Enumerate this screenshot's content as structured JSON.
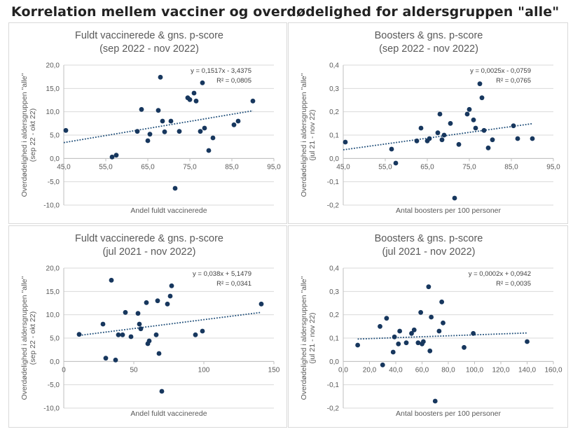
{
  "title": "Korrelation mellem vacciner og overdødelighed for aldersgruppen \"alle\"",
  "colors": {
    "point": "#17375e",
    "trend": "#1f4e79",
    "grid": "#d9d9d9",
    "axis": "#bfbfbf",
    "text": "#595959"
  },
  "chart_data": [
    {
      "type": "scatter",
      "title_lines": [
        "Fuldt vaccinerede & gns. p-score",
        "(sep 2022 - nov 2022)"
      ],
      "xlabel": "Andel fuldt vaccinerede",
      "ylabel_lines": [
        "Overdødelighed i aldersgruppen \"alle\"",
        "(sep 22 - okt 22)"
      ],
      "xlim": [
        45,
        95
      ],
      "ylim": [
        -10,
        20
      ],
      "xticks": [
        45,
        55,
        65,
        75,
        85,
        95
      ],
      "xtick_labels": [
        "45,0",
        "55,0",
        "65,0",
        "75,0",
        "85,0",
        "95,0"
      ],
      "yticks": [
        -10,
        -5,
        0,
        5,
        10,
        15,
        20
      ],
      "ytick_labels": [
        "-10,0",
        "-5,0",
        "0,0",
        "5,0",
        "10,0",
        "15,0",
        "20,0"
      ],
      "equation": "y = 0,1517x - 3,4375",
      "r_squared": "R² = 0,0805",
      "trendline": {
        "x": [
          45,
          90
        ],
        "y": [
          3.39,
          10.22
        ]
      },
      "x": [
        45.5,
        56.5,
        57.5,
        62.5,
        63.5,
        65,
        65.5,
        67.5,
        68,
        68.5,
        69,
        70.5,
        71.5,
        72.5,
        74.5,
        75,
        76,
        76.5,
        77.5,
        78,
        78.5,
        79.5,
        80.5,
        85.5,
        86.5,
        90
      ],
      "y": [
        6,
        0.3,
        0.7,
        5.8,
        10.5,
        3.8,
        5.2,
        10.3,
        17.4,
        8,
        5.7,
        8,
        -6.4,
        5.8,
        13,
        12.6,
        14,
        12.3,
        5.8,
        16.2,
        6.5,
        1.7,
        4.4,
        7.2,
        8,
        12.3
      ]
    },
    {
      "type": "scatter",
      "title_lines": [
        "Boosters & gns. p-score",
        "(sep 2022 - nov 2022)"
      ],
      "xlabel": "Antal boosters per 100 personer",
      "ylabel_lines": [
        "Overdødelighed i aldersgruppen \"alle\"",
        "(jul 21 - nov 22)"
      ],
      "xlim": [
        45,
        95
      ],
      "ylim": [
        -0.2,
        0.4
      ],
      "xticks": [
        45,
        55,
        65,
        75,
        85,
        95
      ],
      "xtick_labels": [
        "45,0",
        "55,0",
        "65,0",
        "75,0",
        "85,0",
        "95,0"
      ],
      "yticks": [
        -0.2,
        -0.1,
        0,
        0.1,
        0.2,
        0.3,
        0.4
      ],
      "ytick_labels": [
        "-0,2",
        "-0,1",
        "0,0",
        "0,1",
        "0,2",
        "0,3",
        "0,4"
      ],
      "equation": "y = 0,0025x - 0,0759",
      "r_squared": "R² = 0,0765",
      "trendline": {
        "x": [
          45,
          90
        ],
        "y": [
          0.037,
          0.149
        ]
      },
      "x": [
        45.5,
        56.5,
        57.5,
        62.5,
        63.5,
        65,
        65.5,
        67.5,
        68,
        68.5,
        69,
        70.5,
        71.5,
        72.5,
        74.5,
        75,
        76,
        76.5,
        77.5,
        78,
        78.5,
        79.5,
        80.5,
        85.5,
        86.5,
        90
      ],
      "y": [
        0.07,
        0.04,
        -0.02,
        0.075,
        0.13,
        0.075,
        0.085,
        0.11,
        0.19,
        0.08,
        0.1,
        0.15,
        -0.17,
        0.06,
        0.19,
        0.21,
        0.165,
        0.13,
        0.32,
        0.26,
        0.12,
        0.045,
        0.08,
        0.14,
        0.085,
        0.085
      ]
    },
    {
      "type": "scatter",
      "title_lines": [
        "Fuldt vaccinerede & gns. p-score",
        "(jul 2021 - nov 2022)"
      ],
      "xlabel": "Andel fuldt vaccinerede",
      "ylabel_lines": [
        "Overdødelighed i aldersgruppen \"alle\"",
        "(sep 22 - okt 22)"
      ],
      "xlim": [
        0,
        150
      ],
      "ylim": [
        -10,
        20
      ],
      "xticks": [
        0,
        50,
        100,
        150
      ],
      "xtick_labels": [
        "0",
        "50",
        "100",
        "150"
      ],
      "yticks": [
        -10,
        -5,
        0,
        5,
        10,
        15,
        20
      ],
      "ytick_labels": [
        "-10,0",
        "-5,0",
        "0,0",
        "5,0",
        "10,0",
        "15,0",
        "20,0"
      ],
      "equation": "y = 0,038x + 5,1479",
      "r_squared": "R² = 0,0341",
      "trendline": {
        "x": [
          11,
          141
        ],
        "y": [
          5.57,
          10.51
        ]
      },
      "x": [
        11,
        28,
        30,
        34,
        37,
        39,
        42,
        44,
        48,
        53,
        54,
        55,
        59,
        60,
        61,
        66,
        67,
        68,
        70,
        74,
        76,
        77,
        94,
        99,
        141
      ],
      "y": [
        5.8,
        8,
        0.7,
        17.4,
        0.3,
        5.7,
        5.7,
        10.5,
        5.3,
        10.3,
        8,
        7,
        12.6,
        3.8,
        4.4,
        5.7,
        13,
        1.7,
        -6.4,
        12.3,
        14,
        16.2,
        5.7,
        6.5,
        12.3
      ]
    },
    {
      "type": "scatter",
      "title_lines": [
        "Boosters & gns. p-score",
        "(jul 2021 - nov 2022)"
      ],
      "xlabel": "Antal boosters per 100 personer",
      "ylabel_lines": [
        "Overdødelighed i aldersgruppen \"alle\"",
        "(jul 21 - nov 22)"
      ],
      "xlim": [
        0,
        160
      ],
      "ylim": [
        -0.2,
        0.4
      ],
      "xticks": [
        0,
        20,
        40,
        60,
        80,
        100,
        120,
        140,
        160
      ],
      "xtick_labels": [
        "0,0",
        "20,0",
        "40,0",
        "60,0",
        "80,0",
        "100,0",
        "120,0",
        "140,0",
        "160,0"
      ],
      "yticks": [
        -0.2,
        -0.1,
        0,
        0.1,
        0.2,
        0.3,
        0.4
      ],
      "ytick_labels": [
        "-0,2",
        "-0,1",
        "0,0",
        "0,1",
        "0,2",
        "0,3",
        "0,4"
      ],
      "equation": "y = 0,0002x + 0,0942",
      "r_squared": "R² = 0,0035",
      "trendline": {
        "x": [
          11,
          140
        ],
        "y": [
          0.096,
          0.122
        ]
      },
      "x": [
        11,
        28,
        30,
        33,
        38,
        39,
        42,
        43,
        48,
        52,
        54,
        57,
        59,
        60,
        61,
        65,
        66,
        67,
        70,
        73,
        75,
        76,
        92,
        99,
        140
      ],
      "y": [
        0.07,
        0.15,
        -0.015,
        0.185,
        0.04,
        0.105,
        0.075,
        0.13,
        0.08,
        0.12,
        0.135,
        0.08,
        0.21,
        0.075,
        0.085,
        0.32,
        0.045,
        0.19,
        -0.17,
        0.13,
        0.255,
        0.165,
        0.06,
        0.12,
        0.085
      ]
    }
  ]
}
